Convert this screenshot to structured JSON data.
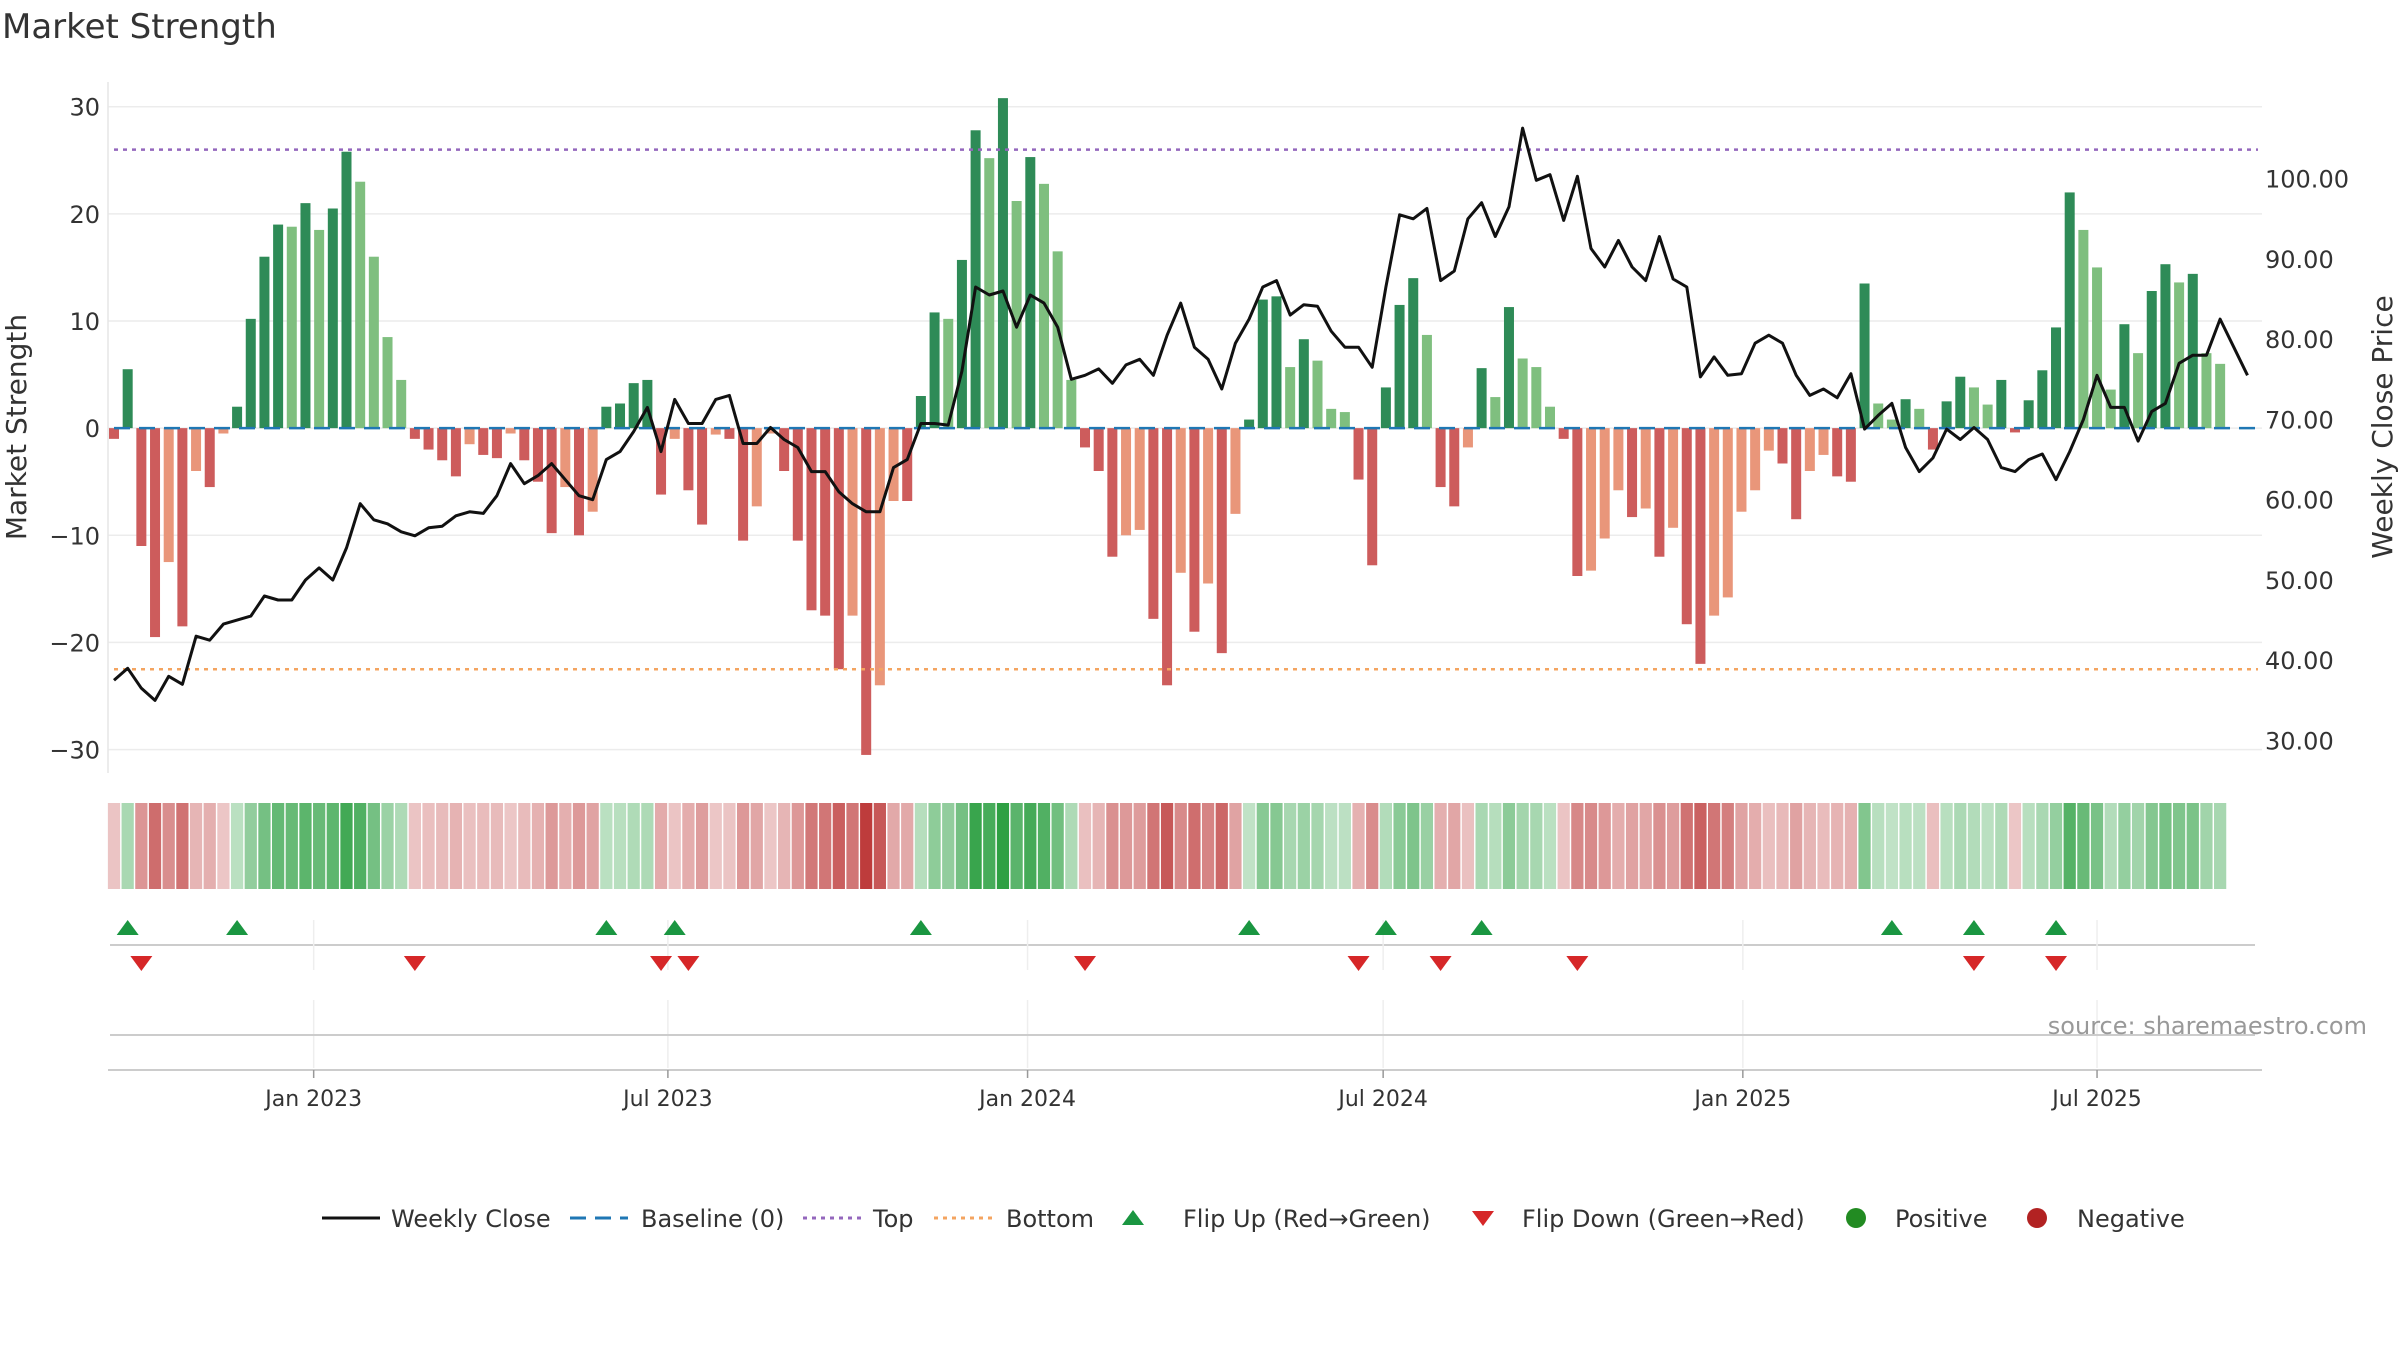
{
  "chart_data": {
    "type": "bar",
    "title": "Market Strength",
    "ylabel_left": "Market Strength",
    "ylabel_right": "Weekly Close Price",
    "source": "source: sharemaestro.com",
    "ylim_left": [
      -32,
      31
    ],
    "ylim_right": [
      26.2,
      110.3
    ],
    "yticks_left": [
      30,
      20,
      10,
      0,
      -10,
      -20,
      -30
    ],
    "ytick_labels_left": [
      "30",
      "20",
      "10",
      "0",
      "−10",
      "−20",
      "−30"
    ],
    "yticks_right": [
      100,
      90,
      80,
      70,
      60,
      50,
      40,
      30
    ],
    "ytick_labels_right": [
      "100.00",
      "90.00",
      "80.00",
      "70.00",
      "60.00",
      "50.00",
      "40.00",
      "30.00"
    ],
    "top_level": 26,
    "bottom_level": -22.5,
    "x_start_week": 0,
    "x_end_week": 157,
    "xticks": [
      {
        "week": 14.6,
        "label": "Jan 2023"
      },
      {
        "week": 40.5,
        "label": "Jul 2023"
      },
      {
        "week": 66.8,
        "label": "Jan 2024"
      },
      {
        "week": 92.8,
        "label": "Jul 2024"
      },
      {
        "week": 119.1,
        "label": "Jan 2025"
      },
      {
        "week": 145.0,
        "label": "Jul 2025"
      }
    ],
    "strength": [
      -1,
      5.5,
      -11,
      -19.5,
      -12.5,
      -18.5,
      -4,
      -5.5,
      -0.5,
      2,
      10.2,
      16,
      19,
      18.8,
      21,
      18.5,
      20.5,
      25.8,
      23,
      16,
      8.5,
      4.5,
      -1,
      -2,
      -3,
      -4.5,
      -1.5,
      -2.5,
      -2.8,
      -0.5,
      -3,
      -5,
      -9.8,
      -5.5,
      -10,
      -7.8,
      2,
      2.3,
      4.2,
      4.5,
      -6.2,
      -1,
      -5.8,
      -9,
      -0.6,
      -1,
      -10.5,
      -7.3,
      -0.5,
      -4,
      -10.5,
      -17,
      -17.5,
      -22.5,
      -17.5,
      -30.5,
      -24,
      -6.8,
      -6.8,
      3,
      10.8,
      10.2,
      15.7,
      27.8,
      25.2,
      30.8,
      21.2,
      25.3,
      22.8,
      16.5,
      4.5,
      -1.8,
      -4,
      -12,
      -10,
      -9.5,
      -17.8,
      -24,
      -13.5,
      -19,
      -14.5,
      -21,
      -8,
      0.8,
      12,
      12.3,
      5.7,
      8.3,
      6.3,
      1.8,
      1.5,
      -4.8,
      -12.8,
      3.8,
      11.5,
      14,
      8.7,
      -5.5,
      -7.3,
      -1.8,
      5.6,
      2.9,
      11.3,
      6.5,
      5.7,
      2,
      -1,
      -13.8,
      -13.3,
      -10.3,
      -5.8,
      -8.3,
      -7.5,
      -12,
      -9.3,
      -18.3,
      -22,
      -17.5,
      -15.8,
      -7.8,
      -5.8,
      -2.1,
      -3.3,
      -8.5,
      -4,
      -2.5,
      -4.5,
      -5,
      13.5,
      2.3,
      0.8,
      2.7,
      1.8,
      -2,
      2.5,
      4.8,
      3.8,
      2.2,
      4.5,
      -0.4,
      2.6,
      5.4,
      9.4,
      22,
      18.5,
      15,
      3.6,
      9.7,
      7,
      12.8,
      15.3,
      13.6,
      14.4,
      7,
      6
    ],
    "close": [
      37.5,
      39,
      36.5,
      35,
      38,
      37,
      43,
      42.5,
      44.5,
      45,
      45.5,
      48,
      47.5,
      47.5,
      50,
      51.5,
      50,
      54,
      59.5,
      57.5,
      57,
      56,
      55.5,
      56.5,
      56.7,
      58,
      58.5,
      58.3,
      60.5,
      64.5,
      62,
      63,
      64.5,
      62.5,
      60.5,
      60,
      65,
      66,
      68.5,
      71.5,
      66,
      72.5,
      69.5,
      69.5,
      72.5,
      73,
      67,
      67,
      69,
      67.5,
      66.5,
      63.5,
      63.5,
      61,
      59.5,
      58.5,
      58.5,
      64,
      65,
      69.5,
      69.5,
      69.3,
      76,
      86.5,
      85.5,
      86,
      81.5,
      85.5,
      84.5,
      81.5,
      75,
      75.5,
      76.3,
      74.5,
      76.8,
      77.5,
      75.5,
      80.5,
      84.5,
      79,
      77.5,
      73.8,
      79.5,
      82.5,
      86.5,
      87.3,
      83,
      84.3,
      84.1,
      81,
      79,
      79,
      76.5,
      86.5,
      95.5,
      95,
      96.3,
      87.3,
      88.5,
      95,
      97,
      92.8,
      96.5,
      106.3,
      99.8,
      100.5,
      94.8,
      100.3,
      91.3,
      89,
      92.3,
      89,
      87.3,
      92.8,
      87.5,
      86.5,
      75.3,
      77.8,
      75.5,
      75.7,
      79.5,
      80.5,
      79.5,
      75.5,
      73,
      73.8,
      72.7,
      75.7,
      68.8,
      70.5,
      72,
      66.5,
      63.5,
      65.2,
      68.8,
      67.5,
      69,
      67.5,
      64,
      63.5,
      65,
      65.7,
      62.5,
      66,
      70,
      75.5,
      71.5,
      71.5,
      67.3,
      71,
      72,
      77,
      78,
      78,
      82.5,
      79,
      75.5
    ],
    "regime_band": "Weekly strength regime strip (green = positive, red = negative; shade = intensity)",
    "flip_up_weeks": [
      1,
      9,
      36,
      41,
      59,
      83,
      93,
      100,
      130,
      136,
      142
    ],
    "flip_down_weeks": [
      2,
      22,
      40,
      42,
      71,
      91,
      97,
      107,
      136,
      142
    ]
  },
  "legend": {
    "weekly_close": "Weekly Close",
    "baseline": "Baseline (0)",
    "top": "Top",
    "bottom": "Bottom",
    "flip_up": "Flip Up (Red→Green)",
    "flip_down": "Flip Down (Green→Red)",
    "positive": "Positive",
    "negative": "Negative"
  },
  "colors": {
    "strong_green": "#2e8b57",
    "light_green": "#7fbf7f",
    "strong_red": "#cd5c5c",
    "light_red": "#e9967a",
    "close_line": "#111111",
    "baseline": "#1f77b4",
    "top": "#9467bd",
    "bottom": "#f4a460",
    "flip_up": "#1a9641",
    "flip_down": "#d62728",
    "positive_dot": "#228b22",
    "negative_dot": "#b22222"
  }
}
